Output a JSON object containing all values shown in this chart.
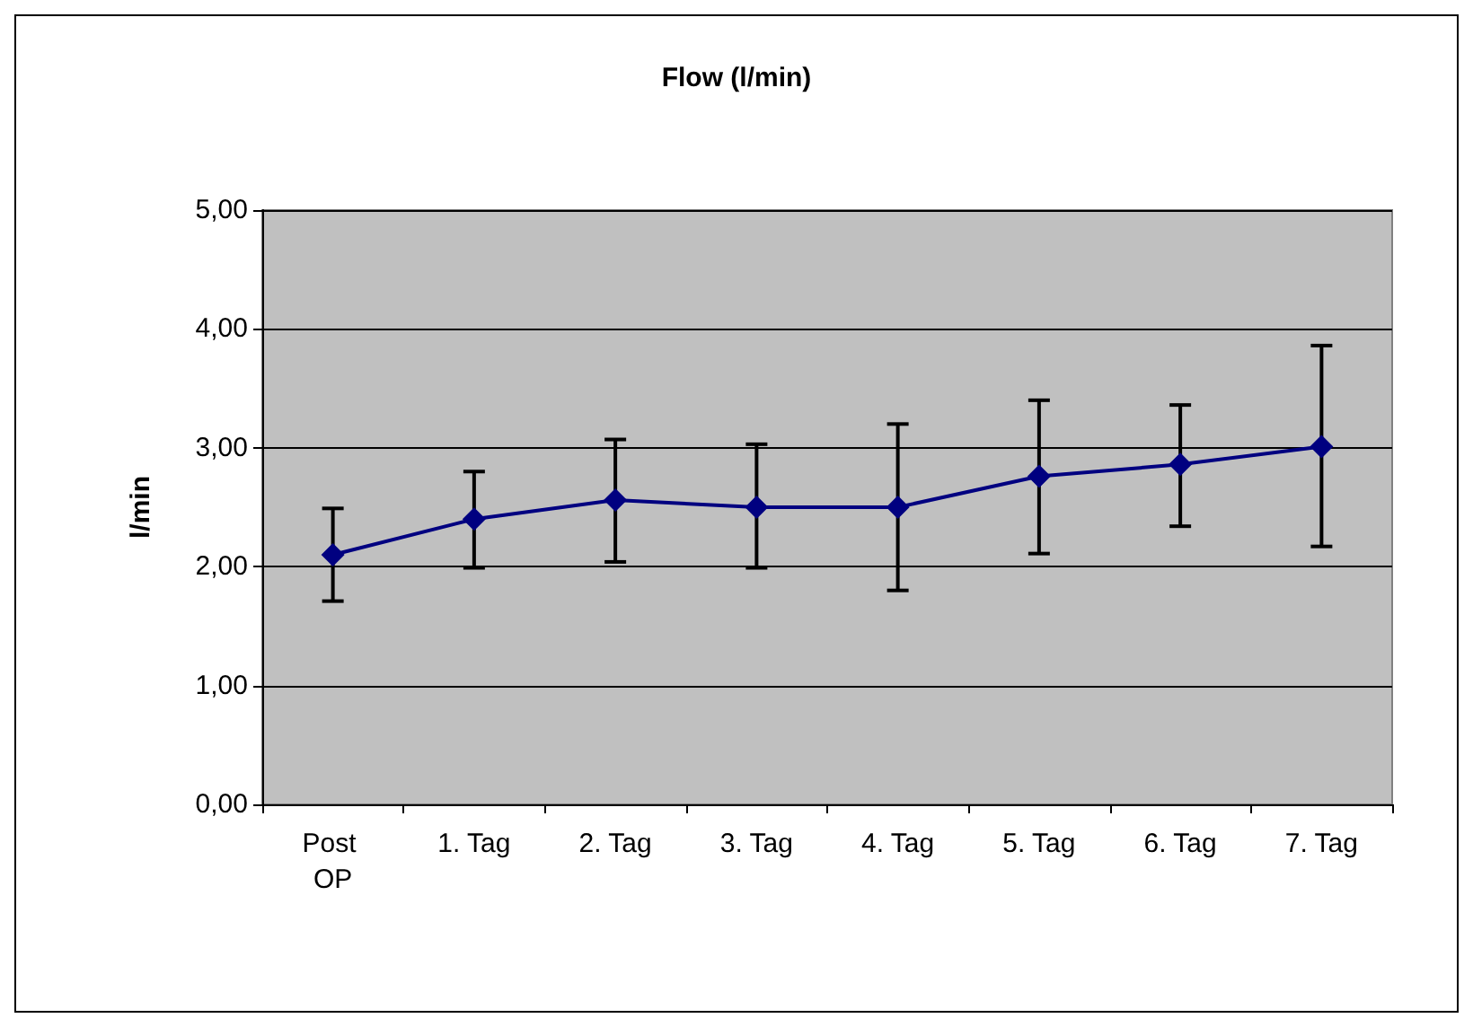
{
  "chart_data": {
    "type": "line",
    "title": "Flow (l/min)",
    "ylabel": "l/min",
    "categories": [
      "Post OP",
      "1. Tag",
      "2. Tag",
      "3. Tag",
      "4. Tag",
      "5. Tag",
      "6. Tag",
      "7. Tag"
    ],
    "series": [
      {
        "color": "#000080",
        "values": [
          2.1,
          2.4,
          2.56,
          2.5,
          2.5,
          2.76,
          2.86,
          3.01
        ],
        "errors": [
          [
            1.71,
            2.49
          ],
          [
            1.99,
            2.8
          ],
          [
            2.04,
            3.07
          ],
          [
            1.99,
            3.03
          ],
          [
            1.8,
            3.2
          ],
          [
            2.11,
            3.4
          ],
          [
            2.34,
            3.36
          ],
          [
            2.17,
            3.86
          ]
        ]
      }
    ],
    "ylim": [
      0,
      5
    ],
    "yticks": [
      {
        "value": 0,
        "label": "0,00"
      },
      {
        "value": 1,
        "label": "1,00"
      },
      {
        "value": 2,
        "label": "2,00"
      },
      {
        "value": 3,
        "label": "3,00"
      },
      {
        "value": 4,
        "label": "4,00"
      },
      {
        "value": 5,
        "label": "5,00"
      }
    ],
    "grid": "y",
    "marker": "diamond",
    "line_style": "solid"
  }
}
